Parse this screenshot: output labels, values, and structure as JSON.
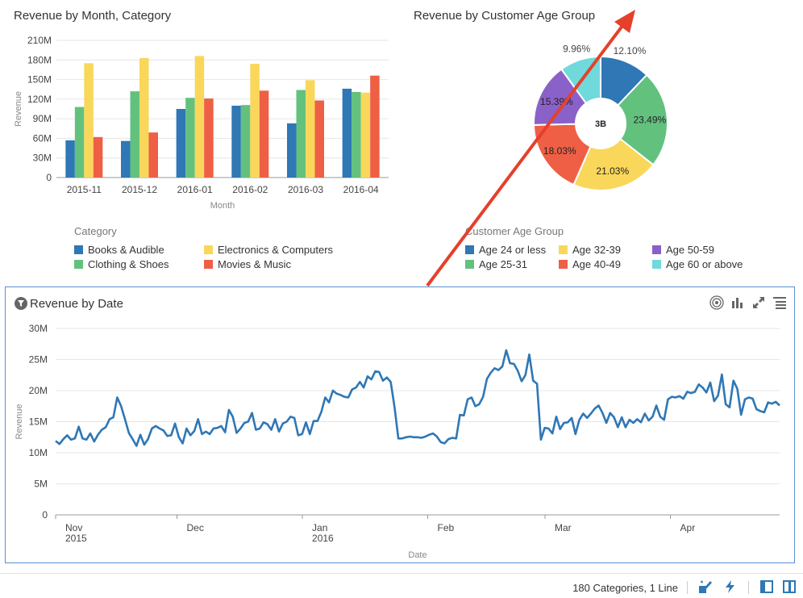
{
  "bar_panel": {
    "title": "Revenue by Month, Category",
    "legend_title": "Category"
  },
  "pie_panel": {
    "title": "Revenue by Customer Age Group",
    "legend_title": "Customer Age Group",
    "center_label": "3B"
  },
  "line_panel": {
    "title": "Revenue by Date",
    "icons": [
      "target-icon",
      "bar-chart-icon",
      "expand-icon",
      "list-icon"
    ]
  },
  "status": {
    "text": "180 Categories, 1 Line"
  },
  "colors": {
    "blue": "#2f77b5",
    "green": "#63c17e",
    "yellow": "#f9d75b",
    "red": "#ee5f45",
    "purple": "#8a61c8",
    "cyan": "#70d9dc",
    "line": "#2f77b5",
    "frame": "#5b8fd2",
    "arrow": "#e5402b"
  },
  "chart_data": [
    {
      "type": "bar",
      "title": "Revenue by Month, Category",
      "xlabel": "Month",
      "ylabel": "Revenue",
      "ylim": [
        0,
        210
      ],
      "yticks": [
        "0",
        "30M",
        "60M",
        "90M",
        "120M",
        "150M",
        "180M",
        "210M"
      ],
      "categories": [
        "2015-11",
        "2015-12",
        "2016-01",
        "2016-02",
        "2016-03",
        "2016-04"
      ],
      "series": [
        {
          "name": "Books & Audible",
          "color": "#2f77b5",
          "values": [
            57,
            56,
            105,
            110,
            83,
            136
          ]
        },
        {
          "name": "Clothing & Shoes",
          "color": "#63c17e",
          "values": [
            108,
            132,
            122,
            111,
            134,
            131
          ]
        },
        {
          "name": "Electronics & Computers",
          "color": "#f9d75b",
          "values": [
            175,
            183,
            186,
            174,
            149,
            130
          ]
        },
        {
          "name": "Movies & Music",
          "color": "#ee5f45",
          "values": [
            62,
            69,
            121,
            133,
            118,
            156
          ]
        }
      ],
      "legend_order": [
        "Books & Audible",
        "Electronics & Computers",
        "Clothing & Shoes",
        "Movies & Music"
      ]
    },
    {
      "type": "pie",
      "title": "Revenue by Customer Age Group",
      "center": "3B",
      "slices": [
        {
          "name": "Age 24 or less",
          "value": 12.1,
          "label": "12.10%",
          "color": "#2f77b5"
        },
        {
          "name": "Age 25-31",
          "value": 23.49,
          "label": "23.49%",
          "color": "#63c17e"
        },
        {
          "name": "Age 32-39",
          "value": 21.03,
          "label": "21.03%",
          "color": "#f9d75b"
        },
        {
          "name": "Age 40-49",
          "value": 18.03,
          "label": "18.03%",
          "color": "#ee5f45"
        },
        {
          "name": "Age 50-59",
          "value": 15.39,
          "label": "15.39%",
          "color": "#8a61c8"
        },
        {
          "name": "Age 60 or above",
          "value": 9.96,
          "label": "9.96%",
          "color": "#70d9dc"
        }
      ],
      "legend_order": [
        "Age 24 or less",
        "Age 32-39",
        "Age 50-59",
        "Age 25-31",
        "Age 40-49",
        "Age 60 or above"
      ]
    },
    {
      "type": "line",
      "title": "Revenue by Date",
      "xlabel": "Date",
      "ylabel": "Revenue",
      "ylim": [
        0,
        30
      ],
      "yticks": [
        "0",
        "5M",
        "10M",
        "15M",
        "20M",
        "25M",
        "30M"
      ],
      "x_start": "2015-11-01",
      "x_end": "2016-04-28",
      "x_ticks": [
        {
          "date": "2015-11-01",
          "label": "Nov",
          "sub": "2015"
        },
        {
          "date": "2015-12-01",
          "label": "Dec",
          "sub": ""
        },
        {
          "date": "2016-01-01",
          "label": "Jan",
          "sub": "2016"
        },
        {
          "date": "2016-02-01",
          "label": "Feb",
          "sub": ""
        },
        {
          "date": "2016-03-01",
          "label": "Mar",
          "sub": ""
        },
        {
          "date": "2016-04-01",
          "label": "Apr",
          "sub": ""
        }
      ],
      "values": [
        11.9,
        11.4,
        12.2,
        12.8,
        12.1,
        12.3,
        14.2,
        12.3,
        12.1,
        13.1,
        11.8,
        12.9,
        13.7,
        14.1,
        15.4,
        15.7,
        18.9,
        17.5,
        15.4,
        13.2,
        12.2,
        11.1,
        12.9,
        11.3,
        12.2,
        13.9,
        14.3,
        13.9,
        13.6,
        12.7,
        12.8,
        14.7,
        12.5,
        11.5,
        13.9,
        12.8,
        13.5,
        15.4,
        13.0,
        13.4,
        13.0,
        13.9,
        14.0,
        14.3,
        13.3,
        16.9,
        15.8,
        13.2,
        13.9,
        14.8,
        15.0,
        16.4,
        13.7,
        13.9,
        14.9,
        14.6,
        13.7,
        15.4,
        13.4,
        14.7,
        15.0,
        15.8,
        15.6,
        12.8,
        13.0,
        14.9,
        13.0,
        15.1,
        15.1,
        16.6,
        18.9,
        18.1,
        20.0,
        19.5,
        19.3,
        19.0,
        18.9,
        20.2,
        20.5,
        21.4,
        20.5,
        22.3,
        21.8,
        23.1,
        23.0,
        21.6,
        22.1,
        21.4,
        17.4,
        12.3,
        12.3,
        12.5,
        12.6,
        12.5,
        12.5,
        12.4,
        12.6,
        12.9,
        13.1,
        12.6,
        11.7,
        11.5,
        12.2,
        12.4,
        12.3,
        16.1,
        16.0,
        18.6,
        18.9,
        17.5,
        17.8,
        19.0,
        21.9,
        22.9,
        23.6,
        23.3,
        23.9,
        26.5,
        24.4,
        24.3,
        23.2,
        21.5,
        22.5,
        25.8,
        21.6,
        21.1,
        12.1,
        14.0,
        13.9,
        13.1,
        15.8,
        13.8,
        14.8,
        14.9,
        15.6,
        13.0,
        15.3,
        16.3,
        15.6,
        16.3,
        17.1,
        17.6,
        16.4,
        14.8,
        16.4,
        15.7,
        14.1,
        15.7,
        14.1,
        15.3,
        14.8,
        15.4,
        14.9,
        16.3,
        15.2,
        15.8,
        17.6,
        15.8,
        15.3,
        18.6,
        19.0,
        18.9,
        19.1,
        18.7,
        19.8,
        19.6,
        19.8,
        21.0,
        20.5,
        19.7,
        21.3,
        18.3,
        19.2,
        22.6,
        17.8,
        17.3,
        21.6,
        20.3,
        16.1,
        18.6,
        18.9,
        18.7,
        17.0,
        16.7,
        16.5,
        18.1,
        17.9,
        18.2,
        17.6
      ]
    }
  ]
}
